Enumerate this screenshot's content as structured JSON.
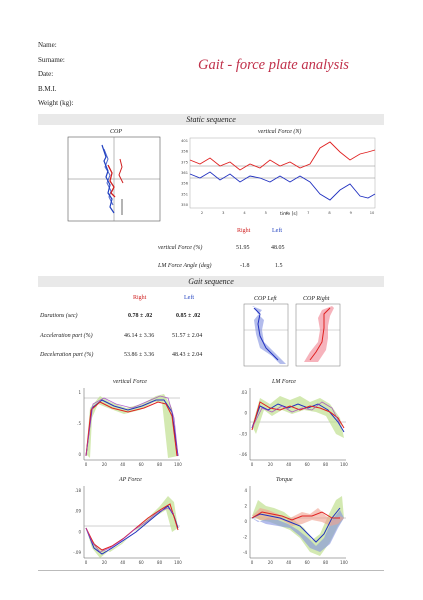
{
  "patient": {
    "labels": [
      "Name:",
      "Surname:",
      "Date:",
      "B.M.I.",
      "Weight (kg):"
    ]
  },
  "report_title": "Gait - force plate analysis",
  "static_section": {
    "band_title": "Static sequence",
    "cop_title": "COP",
    "vforce_title": "vertical Force (N)",
    "vforce_yticks": [
      "401",
      "356",
      "375",
      "361",
      "356",
      "351",
      "350"
    ],
    "vforce_xticks": [
      "2",
      "3",
      "4",
      "5",
      "6",
      "7",
      "8",
      "9",
      "10"
    ],
    "vforce_xlabel": "time [s]",
    "table": {
      "col_right": "Right",
      "col_left": "Left",
      "rows": [
        {
          "label": "vertical Force (%)",
          "right": "51.95",
          "left": "48.05"
        },
        {
          "label": "LM Force Angle (deg)",
          "right": "-1.8",
          "left": "1.5"
        }
      ]
    }
  },
  "gait_section": {
    "band_title": "Gait sequence",
    "table": {
      "col_right": "Right",
      "col_left": "Left",
      "rows": [
        {
          "label": "Durations (sec)",
          "right": "0.78 ± .02",
          "left": "0.85 ± .02"
        },
        {
          "label": "Acceleration part (%)",
          "right": "46.14 ± 3.36",
          "left": "51.57 ± 2.04"
        },
        {
          "label": "Deceleration part (%)",
          "right": "53.86 ± 3.36",
          "left": "48.43 ± 2.04"
        }
      ]
    },
    "cop_left_title": "COP Left",
    "cop_right_title": "COP Right"
  },
  "charts": {
    "vertical_force": {
      "title": "vertical Force",
      "yticks": [
        "1",
        ".5",
        "0"
      ],
      "xticks": [
        "0",
        "20",
        "40",
        "60",
        "80",
        "100"
      ]
    },
    "lm_force": {
      "title": "LM Force",
      "yticks": [
        ".03",
        "0",
        "-.03",
        "-.06"
      ],
      "xticks": [
        "0",
        "20",
        "40",
        "60",
        "80",
        "100"
      ]
    },
    "ap_force": {
      "title": "AP Force",
      "yticks": [
        ".18",
        ".09",
        "0",
        "-.09"
      ],
      "xticks": [
        "0",
        "20",
        "40",
        "60",
        "80",
        "100"
      ]
    },
    "torque": {
      "title": "Torque",
      "yticks": [
        "4",
        "2",
        "0",
        "-2",
        "-4"
      ],
      "xticks": [
        "0",
        "20",
        "40",
        "60",
        "80",
        "100"
      ]
    }
  },
  "colors": {
    "right": "#e02020",
    "left": "#2030c0",
    "green": "#a0d060",
    "title_red": "#c0304a"
  }
}
